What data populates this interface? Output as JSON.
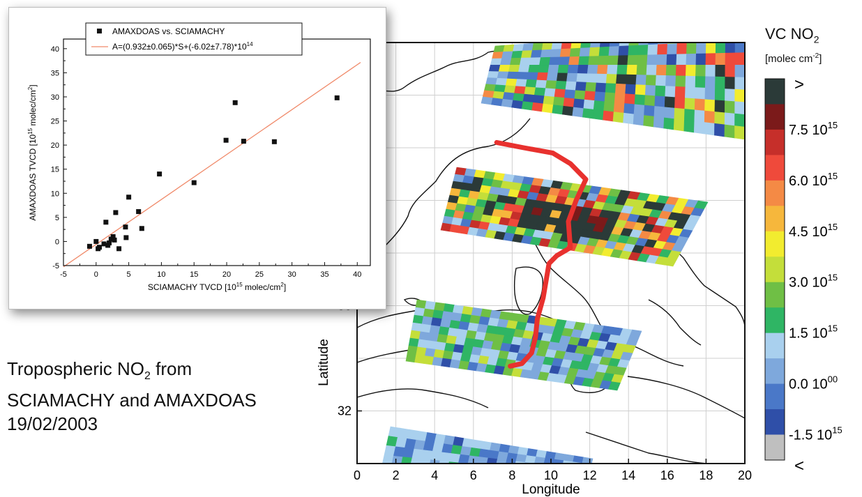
{
  "chart_data": [
    {
      "type": "heatmap",
      "xlabel": "Longitude",
      "ylabel": "Latitude",
      "xlim": [
        0,
        20
      ],
      "ylim": [
        30,
        46
      ],
      "xticks": [
        "0",
        "2",
        "4",
        "6",
        "8",
        "10",
        "12",
        "14",
        "16",
        "18",
        "20"
      ],
      "yticks": [
        "32",
        "36"
      ],
      "grid": true,
      "colorbar": {
        "title": "VC NO",
        "title_sub": "2",
        "unit_base": "[molec cm",
        "unit_sup": "-2",
        "unit_end": "]",
        "top_label": ">",
        "bottom_label": "<",
        "labels": [
          {
            "mant": "7.5 10",
            "exp": "15"
          },
          {
            "mant": "6.0 10",
            "exp": "15"
          },
          {
            "mant": "4.5 10",
            "exp": "15"
          },
          {
            "mant": "3.0 10",
            "exp": "15"
          },
          {
            "mant": "1.5 10",
            "exp": "15"
          },
          {
            "mant": "0.0 10",
            "exp": "00"
          },
          {
            "mant": "-1.5 10",
            "exp": "15"
          }
        ],
        "colors": [
          "#2b3a38",
          "#7b1a1a",
          "#c62f2a",
          "#ef4a3b",
          "#f48a45",
          "#f6b73c",
          "#f2ec2f",
          "#c4de3a",
          "#6fbf45",
          "#2fb564",
          "#a9d0ee",
          "#7ea8dc",
          "#4a78c8",
          "#2f4fa8",
          "#bfbfbf"
        ]
      },
      "flight_track": {
        "color": "#e8312e",
        "points": [
          [
            7.2,
            42.2
          ],
          [
            8.6,
            42.0
          ],
          [
            10.1,
            41.8
          ],
          [
            11.0,
            41.4
          ],
          [
            11.8,
            40.8
          ],
          [
            11.3,
            40.0
          ],
          [
            10.9,
            39.2
          ],
          [
            11.0,
            38.2
          ],
          [
            10.3,
            37.9
          ],
          [
            9.9,
            37.6
          ],
          [
            9.6,
            36.3
          ],
          [
            9.3,
            35.5
          ],
          [
            9.2,
            34.8
          ],
          [
            9.0,
            34.2
          ],
          [
            8.5,
            33.8
          ],
          [
            7.9,
            33.7
          ]
        ]
      },
      "swaths": [
        {
          "name": "swath-1",
          "lon_range": [
            6.5,
            20
          ],
          "lat_range": [
            43.6,
            45.6
          ]
        },
        {
          "name": "swath-2",
          "lon_range": [
            4.5,
            18
          ],
          "lat_range": [
            39.3,
            41.7
          ]
        },
        {
          "name": "swath-3",
          "lon_range": [
            2.5,
            14.5
          ],
          "lat_range": [
            35.5,
            37.5
          ]
        },
        {
          "name": "swath-4",
          "lon_range": [
            1.3,
            12
          ],
          "lat_range": [
            30,
            31.7
          ]
        }
      ]
    },
    {
      "type": "scatter",
      "xlabel_base": "SCIAMACHY TVCD [10",
      "xlabel_sup": "15",
      "xlabel_mid": " molec/cm",
      "xlabel_sup2": "2",
      "xlabel_end": "]",
      "ylabel_base": "AMAXDOAS TVCD [10",
      "ylabel_sup": "15",
      "ylabel_mid": " molec/cm",
      "ylabel_sup2": "2",
      "ylabel_end": "]",
      "xlim": [
        -5,
        42
      ],
      "ylim": [
        -5,
        42
      ],
      "xticks": [
        "-5",
        "0",
        "5",
        "10",
        "15",
        "20",
        "25",
        "30",
        "35",
        "40"
      ],
      "yticks": [
        "-5",
        "0",
        "5",
        "10",
        "15",
        "20",
        "25",
        "30",
        "35",
        "40"
      ],
      "legend": {
        "placement": "top",
        "series_label": "AMAXDOAS vs. SCIAMACHY",
        "fit_label_base": "A=(0.932±0.065)*S+(-6.02±7.78)*10",
        "fit_label_sup": "14"
      },
      "fit": {
        "slope": 0.932,
        "intercept": -0.602,
        "color": "#f08a6a"
      },
      "points": [
        [
          -1.0,
          -1.0
        ],
        [
          0.0,
          0.0
        ],
        [
          0.3,
          -1.5
        ],
        [
          0.5,
          -1.2
        ],
        [
          1.2,
          -0.5
        ],
        [
          1.5,
          4.0
        ],
        [
          1.8,
          -0.8
        ],
        [
          2.0,
          -0.3
        ],
        [
          2.3,
          0.5
        ],
        [
          2.6,
          1.0
        ],
        [
          2.8,
          0.3
        ],
        [
          3.0,
          6.0
        ],
        [
          3.5,
          -1.5
        ],
        [
          4.5,
          3.0
        ],
        [
          4.6,
          0.8
        ],
        [
          5.0,
          9.2
        ],
        [
          6.5,
          6.2
        ],
        [
          7.0,
          2.7
        ],
        [
          9.7,
          14.0
        ],
        [
          15.0,
          12.2
        ],
        [
          19.9,
          21.0
        ],
        [
          21.3,
          28.8
        ],
        [
          22.6,
          20.8
        ],
        [
          27.3,
          20.7
        ],
        [
          36.9,
          29.8
        ]
      ]
    }
  ],
  "caption": {
    "line1_pre": "Tropospheric NO",
    "line1_sub": "2",
    "line1_post": " from",
    "line2": "SCIAMACHY and  AMAXDOAS",
    "line3": "19/02/2003"
  }
}
